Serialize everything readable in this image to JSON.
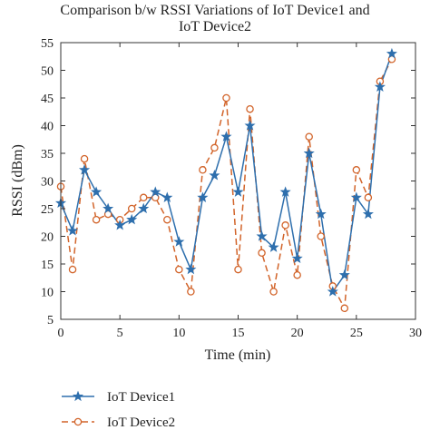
{
  "chart_data": {
    "type": "line",
    "title_line1": "Comparison b/w RSSI Variations of IoT Device1 and",
    "title_line2": "IoT Device2",
    "xlabel": "Time (min)",
    "ylabel": "RSSI (dBm)",
    "xlim": [
      0,
      30
    ],
    "ylim": [
      5,
      55
    ],
    "xticks": [
      0,
      5,
      10,
      15,
      20,
      25,
      30
    ],
    "yticks": [
      5,
      10,
      15,
      20,
      25,
      30,
      35,
      40,
      45,
      50,
      55
    ],
    "grid": false,
    "legend_position": "bottom",
    "x": [
      0,
      1,
      2,
      3,
      4,
      5,
      6,
      7,
      8,
      9,
      10,
      11,
      12,
      13,
      14,
      15,
      16,
      17,
      18,
      19,
      20,
      21,
      22,
      23,
      24,
      25,
      26,
      27,
      28
    ],
    "series": [
      {
        "name": "IoT Device1",
        "color": "#2e6fad",
        "line_style": "solid",
        "marker": "star",
        "values": [
          26,
          21,
          32,
          28,
          25,
          22,
          23,
          25,
          28,
          27,
          19,
          14,
          27,
          31,
          38,
          28,
          40,
          20,
          18,
          28,
          16,
          35,
          24,
          10,
          13,
          27,
          24,
          47,
          53
        ]
      },
      {
        "name": "IoT Device2",
        "color": "#d2642a",
        "line_style": "dashed",
        "marker": "circle",
        "values": [
          29,
          14,
          34,
          23,
          24,
          23,
          25,
          27,
          27,
          23,
          14,
          10,
          32,
          36,
          45,
          14,
          43,
          17,
          10,
          22,
          13,
          38,
          20,
          11,
          7,
          32,
          27,
          48,
          52
        ]
      }
    ]
  }
}
